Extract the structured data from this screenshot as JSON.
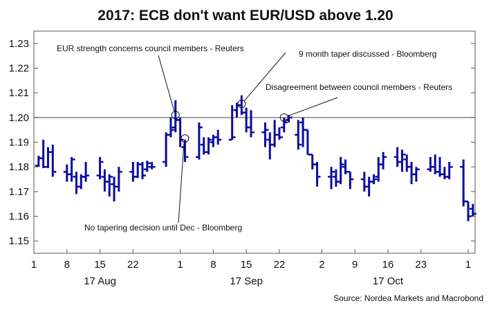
{
  "chart_data": {
    "type": "ohlc",
    "title": "2017: ECB don't want EUR/USD above 1.20",
    "source": "Source: Nordea Markets and Macrobond",
    "ylim": [
      1.145,
      1.235
    ],
    "yticks": [
      "1.15",
      "1.16",
      "1.17",
      "1.18",
      "1.19",
      "1.20",
      "1.21",
      "1.22",
      "1.23"
    ],
    "reference_line": 1.2,
    "x_range_days": [
      0,
      92
    ],
    "xticks": [
      {
        "day": 0,
        "label": "1"
      },
      {
        "day": 7,
        "label": "8"
      },
      {
        "day": 14,
        "label": "15"
      },
      {
        "day": 21,
        "label": "22"
      },
      {
        "day": 31,
        "label": "1"
      },
      {
        "day": 38,
        "label": "8"
      },
      {
        "day": 45,
        "label": "15"
      },
      {
        "day": 52,
        "label": "22"
      },
      {
        "day": 61,
        "label": "2"
      },
      {
        "day": 68,
        "label": "9"
      },
      {
        "day": 75,
        "label": "16"
      },
      {
        "day": 82,
        "label": "23"
      },
      {
        "day": 92,
        "label": "1"
      }
    ],
    "months": [
      {
        "day": 14,
        "label": "17 Aug"
      },
      {
        "day": 45,
        "label": "17 Sep"
      },
      {
        "day": 75,
        "label": "17 Oct"
      }
    ],
    "bars": [
      {
        "day": 1,
        "open": 1.1805,
        "high": 1.1845,
        "low": 1.18,
        "close": 1.1835
      },
      {
        "day": 2,
        "open": 1.1835,
        "high": 1.191,
        "low": 1.1795,
        "close": 1.18
      },
      {
        "day": 3,
        "open": 1.18,
        "high": 1.188,
        "low": 1.1795,
        "close": 1.186
      },
      {
        "day": 4,
        "open": 1.186,
        "high": 1.189,
        "low": 1.176,
        "close": 1.178
      },
      {
        "day": 7,
        "open": 1.178,
        "high": 1.181,
        "low": 1.174,
        "close": 1.177
      },
      {
        "day": 8,
        "open": 1.177,
        "high": 1.184,
        "low": 1.174,
        "close": 1.183
      },
      {
        "day": 9,
        "open": 1.176,
        "high": 1.178,
        "low": 1.169,
        "close": 1.172
      },
      {
        "day": 10,
        "open": 1.172,
        "high": 1.177,
        "low": 1.171,
        "close": 1.176
      },
      {
        "day": 11,
        "open": 1.176,
        "high": 1.182,
        "low": 1.174,
        "close": 1.1765
      },
      {
        "day": 14,
        "open": 1.1765,
        "high": 1.184,
        "low": 1.175,
        "close": 1.182
      },
      {
        "day": 15,
        "open": 1.176,
        "high": 1.179,
        "low": 1.17,
        "close": 1.174
      },
      {
        "day": 16,
        "open": 1.174,
        "high": 1.177,
        "low": 1.168,
        "close": 1.176
      },
      {
        "day": 17,
        "open": 1.173,
        "high": 1.176,
        "low": 1.166,
        "close": 1.172
      },
      {
        "day": 18,
        "open": 1.172,
        "high": 1.18,
        "low": 1.17,
        "close": 1.178
      },
      {
        "day": 21,
        "open": 1.178,
        "high": 1.182,
        "low": 1.174,
        "close": 1.176
      },
      {
        "day": 22,
        "open": 1.176,
        "high": 1.182,
        "low": 1.1755,
        "close": 1.181
      },
      {
        "day": 23,
        "open": 1.181,
        "high": 1.182,
        "low": 1.175,
        "close": 1.1765
      },
      {
        "day": 24,
        "open": 1.179,
        "high": 1.1825,
        "low": 1.178,
        "close": 1.1815
      },
      {
        "day": 25,
        "open": 1.18,
        "high": 1.182,
        "low": 1.179,
        "close": 1.18
      },
      {
        "day": 28,
        "open": 1.182,
        "high": 1.194,
        "low": 1.18,
        "close": 1.193
      },
      {
        "day": 29,
        "open": 1.193,
        "high": 1.2,
        "low": 1.192,
        "close": 1.195
      },
      {
        "day": 30,
        "open": 1.196,
        "high": 1.207,
        "low": 1.194,
        "close": 1.199
      },
      {
        "day": 31,
        "open": 1.199,
        "high": 1.2,
        "low": 1.188,
        "close": 1.191
      },
      {
        "day": 32,
        "open": 1.188,
        "high": 1.191,
        "low": 1.182,
        "close": 1.184
      },
      {
        "day": 35,
        "open": 1.184,
        "high": 1.198,
        "low": 1.183,
        "close": 1.196
      },
      {
        "day": 36,
        "open": 1.189,
        "high": 1.192,
        "low": 1.185,
        "close": 1.186
      },
      {
        "day": 37,
        "open": 1.186,
        "high": 1.192,
        "low": 1.185,
        "close": 1.191
      },
      {
        "day": 38,
        "open": 1.19,
        "high": 1.193,
        "low": 1.188,
        "close": 1.192
      },
      {
        "day": 39,
        "open": 1.192,
        "high": 1.195,
        "low": 1.189,
        "close": 1.191
      },
      {
        "day": 42,
        "open": 1.191,
        "high": 1.205,
        "low": 1.191,
        "close": 1.192
      },
      {
        "day": 43,
        "open": 1.203,
        "high": 1.206,
        "low": 1.2,
        "close": 1.205
      },
      {
        "day": 44,
        "open": 1.205,
        "high": 1.209,
        "low": 1.201,
        "close": 1.202
      },
      {
        "day": 45,
        "open": 1.202,
        "high": 1.204,
        "low": 1.194,
        "close": 1.196
      },
      {
        "day": 46,
        "open": 1.196,
        "high": 1.203,
        "low": 1.192,
        "close": 1.194
      },
      {
        "day": 49,
        "open": 1.194,
        "high": 1.198,
        "low": 1.188,
        "close": 1.195
      },
      {
        "day": 50,
        "open": 1.191,
        "high": 1.194,
        "low": 1.183,
        "close": 1.189
      },
      {
        "day": 51,
        "open": 1.189,
        "high": 1.199,
        "low": 1.188,
        "close": 1.193
      },
      {
        "day": 52,
        "open": 1.193,
        "high": 1.196,
        "low": 1.191,
        "close": 1.192
      },
      {
        "day": 53,
        "open": 1.196,
        "high": 1.2,
        "low": 1.194,
        "close": 1.198
      },
      {
        "day": 54,
        "open": 1.199,
        "high": 1.201,
        "low": 1.198,
        "close": 1.2
      },
      {
        "day": 56,
        "open": 1.193,
        "high": 1.199,
        "low": 1.187,
        "close": 1.189
      },
      {
        "day": 57,
        "open": 1.198,
        "high": 1.2,
        "low": 1.188,
        "close": 1.195
      },
      {
        "day": 58,
        "open": 1.195,
        "high": 1.195,
        "low": 1.185,
        "close": 1.185
      },
      {
        "day": 59,
        "open": 1.185,
        "high": 1.185,
        "low": 1.179,
        "close": 1.181
      },
      {
        "day": 60,
        "open": 1.181,
        "high": 1.182,
        "low": 1.172,
        "close": 1.176
      },
      {
        "day": 63,
        "open": 1.176,
        "high": 1.18,
        "low": 1.171,
        "close": 1.178
      },
      {
        "day": 64,
        "open": 1.176,
        "high": 1.179,
        "low": 1.172,
        "close": 1.174
      },
      {
        "day": 65,
        "open": 1.174,
        "high": 1.184,
        "low": 1.173,
        "close": 1.181
      },
      {
        "day": 66,
        "open": 1.18,
        "high": 1.183,
        "low": 1.177,
        "close": 1.178
      },
      {
        "day": 67,
        "open": 1.178,
        "high": 1.178,
        "low": 1.171,
        "close": 1.175
      },
      {
        "day": 70,
        "open": 1.175,
        "high": 1.178,
        "low": 1.17,
        "close": 1.172
      },
      {
        "day": 71,
        "open": 1.172,
        "high": 1.176,
        "low": 1.168,
        "close": 1.174
      },
      {
        "day": 72,
        "open": 1.174,
        "high": 1.177,
        "low": 1.173,
        "close": 1.175
      },
      {
        "day": 73,
        "open": 1.176,
        "high": 1.184,
        "low": 1.174,
        "close": 1.181
      },
      {
        "day": 74,
        "open": 1.181,
        "high": 1.186,
        "low": 1.179,
        "close": 1.184
      },
      {
        "day": 77,
        "open": 1.184,
        "high": 1.188,
        "low": 1.18,
        "close": 1.182
      },
      {
        "day": 78,
        "open": 1.182,
        "high": 1.187,
        "low": 1.178,
        "close": 1.185
      },
      {
        "day": 79,
        "open": 1.183,
        "high": 1.185,
        "low": 1.178,
        "close": 1.18
      },
      {
        "day": 80,
        "open": 1.18,
        "high": 1.182,
        "low": 1.173,
        "close": 1.177
      },
      {
        "day": 81,
        "open": 1.177,
        "high": 1.18,
        "low": 1.174,
        "close": 1.179
      },
      {
        "day": 84,
        "open": 1.179,
        "high": 1.184,
        "low": 1.178,
        "close": 1.18
      },
      {
        "day": 85,
        "open": 1.18,
        "high": 1.185,
        "low": 1.177,
        "close": 1.178
      },
      {
        "day": 86,
        "open": 1.178,
        "high": 1.184,
        "low": 1.176,
        "close": 1.177
      },
      {
        "day": 87,
        "open": 1.177,
        "high": 1.18,
        "low": 1.175,
        "close": 1.176
      },
      {
        "day": 88,
        "open": 1.176,
        "high": 1.182,
        "low": 1.175,
        "close": 1.18
      },
      {
        "day": 91,
        "open": 1.18,
        "high": 1.183,
        "low": 1.164,
        "close": 1.166
      },
      {
        "day": 92,
        "open": 1.166,
        "high": 1.166,
        "low": 1.158,
        "close": 1.16
      },
      {
        "day": 93,
        "open": 1.163,
        "high": 1.165,
        "low": 1.16,
        "close": 1.161
      }
    ],
    "annotations": [
      {
        "text": "EUR strength concerns council members - Reuters",
        "day": 30,
        "value": 1.201,
        "label_day": 26,
        "label_value": 1.2255
      },
      {
        "text": "No tapering decision until Dec - Bloomberg",
        "day": 32,
        "value": 1.1915,
        "label_day": 28,
        "label_value": 1.1555
      },
      {
        "text": "9 month taper discussed - Bloomberg",
        "day": 44,
        "value": 1.2055,
        "label_day": 52,
        "label_value": 1.2245
      },
      {
        "text": "Disagreement between council members - Reuters",
        "day": 53,
        "value": 1.2,
        "label_day": 66,
        "label_value": 1.2115
      }
    ]
  }
}
